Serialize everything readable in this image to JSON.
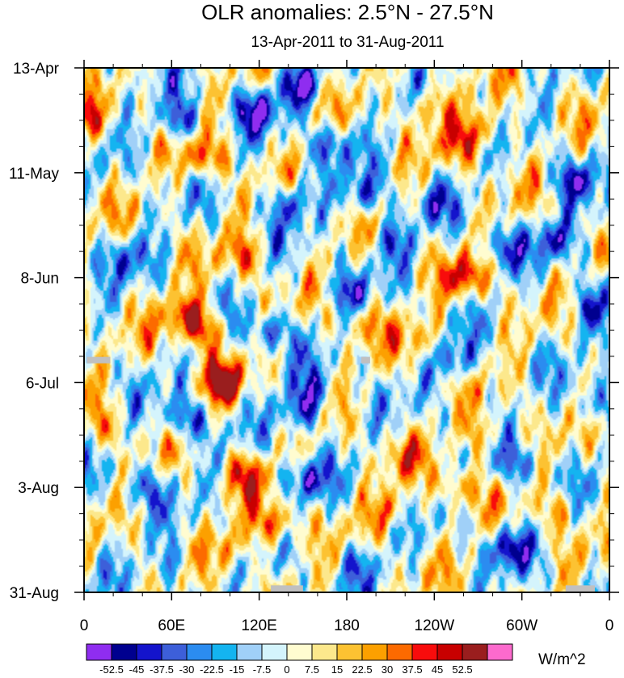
{
  "chart_data": {
    "type": "heatmap",
    "title": "OLR anomalies: 2.5°N - 27.5°N",
    "subtitle": "13-Apr-2011 to 31-Aug-2011",
    "xlabel": "",
    "ylabel": "",
    "x_tick_labels": [
      "0",
      "60E",
      "120E",
      "180",
      "120W",
      "60W",
      "0"
    ],
    "x_tick_longitudes": [
      0,
      60,
      120,
      180,
      240,
      300,
      360
    ],
    "xlim": [
      0,
      360
    ],
    "y_tick_labels": [
      "13-Apr",
      "11-May",
      "8-Jun",
      "6-Jul",
      "3-Aug",
      "31-Aug"
    ],
    "y_tick_days": [
      0,
      28,
      56,
      84,
      112,
      140
    ],
    "ylim": [
      0,
      140
    ],
    "y_direction": "top-to-bottom",
    "colorbar": {
      "units": "W/m^2",
      "levels": [
        "-52.5",
        "-45",
        "-37.5",
        "-30",
        "-22.5",
        "-15",
        "-7.5",
        "0",
        "7.5",
        "15",
        "22.5",
        "30",
        "37.5",
        "45",
        "52.5"
      ],
      "colors": [
        "#8f2df0",
        "#00008f",
        "#1414cc",
        "#3d5fd9",
        "#2b8cf0",
        "#14b4f0",
        "#a0d0f8",
        "#d4f4fc",
        "#fffcd0",
        "#fce88c",
        "#fcc232",
        "#fca000",
        "#fc6a00",
        "#f80c0c",
        "#c80000",
        "#9a1e1e",
        "#fc6acd"
      ]
    },
    "missing_color": "#c0c0c0",
    "missing_segments": [
      {
        "lon": [
          2,
          18
        ],
        "day": 78
      },
      {
        "lon": [
          128,
          150
        ],
        "day": 139
      },
      {
        "lon": [
          190,
          196
        ],
        "day": 78
      },
      {
        "lon": [
          330,
          350
        ],
        "day": 139
      }
    ],
    "anomaly_field": {
      "description": "Hovmoller of OLR anomaly (W/m^2), longitude vs. time",
      "blobs": [
        {
          "lon": 82,
          "day": 24,
          "value": 40
        },
        {
          "lon": 65,
          "day": 14,
          "value": -45
        },
        {
          "lon": 118,
          "day": 11,
          "value": -42
        },
        {
          "lon": 148,
          "day": 5,
          "value": -48
        },
        {
          "lon": 192,
          "day": 34,
          "value": -38
        },
        {
          "lon": 238,
          "day": 10,
          "value": 35
        },
        {
          "lon": 258,
          "day": 20,
          "value": 28
        },
        {
          "lon": 275,
          "day": 16,
          "value": 30
        },
        {
          "lon": 285,
          "day": 48,
          "value": -32
        },
        {
          "lon": 336,
          "day": 30,
          "value": -40
        },
        {
          "lon": 322,
          "day": 46,
          "value": -35
        },
        {
          "lon": 262,
          "day": 56,
          "value": 42
        },
        {
          "lon": 70,
          "day": 66,
          "value": 48
        },
        {
          "lon": 82,
          "day": 70,
          "value": 38
        },
        {
          "lon": 95,
          "day": 84,
          "value": 50
        },
        {
          "lon": 128,
          "day": 70,
          "value": -42
        },
        {
          "lon": 140,
          "day": 36,
          "value": -40
        },
        {
          "lon": 28,
          "day": 50,
          "value": -28
        },
        {
          "lon": 180,
          "day": 60,
          "value": -30
        },
        {
          "lon": 192,
          "day": 68,
          "value": 25
        },
        {
          "lon": 232,
          "day": 72,
          "value": 22
        },
        {
          "lon": 255,
          "day": 78,
          "value": -35
        },
        {
          "lon": 345,
          "day": 64,
          "value": -30
        },
        {
          "lon": 10,
          "day": 96,
          "value": 25
        },
        {
          "lon": 68,
          "day": 94,
          "value": -42
        },
        {
          "lon": 148,
          "day": 92,
          "value": -45
        },
        {
          "lon": 155,
          "day": 86,
          "value": -30
        },
        {
          "lon": 112,
          "day": 108,
          "value": 35
        },
        {
          "lon": 130,
          "day": 122,
          "value": 45
        },
        {
          "lon": 150,
          "day": 110,
          "value": -40
        },
        {
          "lon": 210,
          "day": 118,
          "value": 28
        },
        {
          "lon": 255,
          "day": 112,
          "value": 32
        },
        {
          "lon": 272,
          "day": 98,
          "value": 30
        },
        {
          "lon": 298,
          "day": 106,
          "value": -32
        },
        {
          "lon": 325,
          "day": 118,
          "value": 22
        },
        {
          "lon": 290,
          "day": 128,
          "value": -42
        },
        {
          "lon": 218,
          "day": 104,
          "value": 20
        },
        {
          "lon": 40,
          "day": 112,
          "value": -30
        },
        {
          "lon": 60,
          "day": 132,
          "value": -28
        },
        {
          "lon": 100,
          "day": 128,
          "value": 30
        },
        {
          "lon": 190,
          "day": 132,
          "value": -25
        },
        {
          "lon": 350,
          "day": 90,
          "value": -32
        },
        {
          "lon": 360,
          "day": 40,
          "value": -20
        },
        {
          "lon": 2,
          "day": 14,
          "value": 30
        },
        {
          "lon": 170,
          "day": 20,
          "value": -35
        },
        {
          "lon": 212,
          "day": 46,
          "value": -30
        },
        {
          "lon": 110,
          "day": 50,
          "value": 30
        },
        {
          "lon": 240,
          "day": 36,
          "value": -22
        }
      ]
    }
  }
}
